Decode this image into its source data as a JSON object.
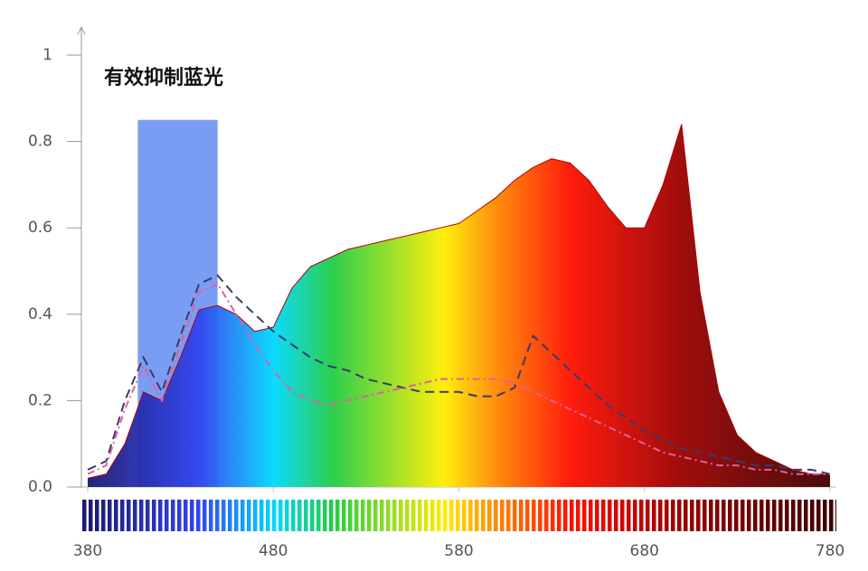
{
  "chart_data": {
    "type": "line",
    "annotation": "有效抑制蓝光",
    "highlight": {
      "x": [
        407,
        450
      ],
      "y": 0.85,
      "color": "#4d7cf0"
    },
    "x": [
      380,
      390,
      400,
      410,
      420,
      430,
      440,
      450,
      460,
      470,
      480,
      490,
      500,
      510,
      520,
      530,
      540,
      550,
      560,
      570,
      580,
      590,
      600,
      610,
      620,
      630,
      640,
      650,
      660,
      670,
      680,
      690,
      700,
      710,
      720,
      730,
      740,
      750,
      760,
      770,
      780
    ],
    "series": [
      {
        "color": "#b00000",
        "fill": true,
        "style": "solid",
        "values": [
          0.02,
          0.03,
          0.1,
          0.22,
          0.2,
          0.3,
          0.41,
          0.42,
          0.4,
          0.36,
          0.37,
          0.46,
          0.51,
          0.53,
          0.55,
          0.56,
          0.57,
          0.58,
          0.59,
          0.6,
          0.61,
          0.64,
          0.67,
          0.71,
          0.74,
          0.76,
          0.75,
          0.71,
          0.65,
          0.6,
          0.6,
          0.7,
          0.84,
          0.45,
          0.22,
          0.12,
          0.08,
          0.06,
          0.04,
          0.03,
          0.03
        ]
      },
      {
        "color": "#3a3a6a",
        "fill": false,
        "style": "dashed",
        "values": [
          0.04,
          0.06,
          0.2,
          0.3,
          0.22,
          0.35,
          0.47,
          0.49,
          0.44,
          0.4,
          0.36,
          0.33,
          0.3,
          0.28,
          0.27,
          0.25,
          0.24,
          0.23,
          0.22,
          0.22,
          0.22,
          0.21,
          0.21,
          0.23,
          0.35,
          0.31,
          0.27,
          0.23,
          0.19,
          0.16,
          0.13,
          0.11,
          0.09,
          0.08,
          0.07,
          0.06,
          0.05,
          0.05,
          0.04,
          0.04,
          0.03
        ]
      },
      {
        "color": "#e060a0",
        "fill": false,
        "style": "dash-dot",
        "values": [
          0.03,
          0.05,
          0.18,
          0.28,
          0.2,
          0.33,
          0.45,
          0.47,
          0.4,
          0.33,
          0.27,
          0.22,
          0.2,
          0.19,
          0.2,
          0.21,
          0.22,
          0.23,
          0.24,
          0.25,
          0.25,
          0.25,
          0.25,
          0.24,
          0.22,
          0.2,
          0.18,
          0.16,
          0.14,
          0.12,
          0.1,
          0.08,
          0.07,
          0.06,
          0.05,
          0.05,
          0.04,
          0.04,
          0.03,
          0.03,
          0.03
        ]
      }
    ],
    "xlim": [
      380,
      780
    ],
    "xticks": [
      380,
      480,
      580,
      680,
      780
    ],
    "ylim": [
      0,
      1
    ],
    "yticks": [
      {
        "value": 0,
        "label": "0.0"
      },
      0.2,
      0.4,
      0.6,
      0.8,
      1
    ]
  }
}
